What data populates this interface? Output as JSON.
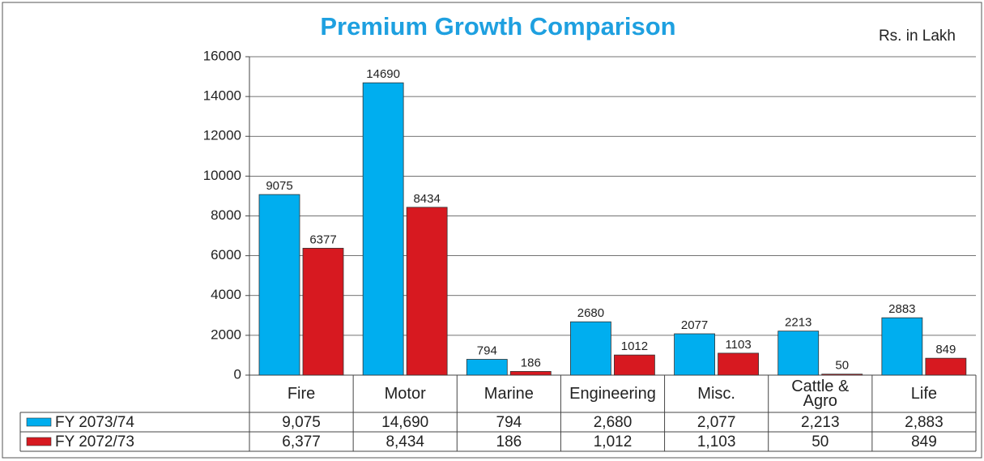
{
  "chart_data": {
    "type": "bar",
    "title": "Premium Growth Comparison",
    "subtitle": "Rs. in Lakh",
    "categories": [
      "Fire",
      "Motor",
      "Marine",
      "Engineering",
      "Misc.",
      "Cattle & Agro",
      "Life"
    ],
    "series": [
      {
        "name": "FY 2073/74",
        "color": "#00aeef",
        "values": [
          9075,
          14690,
          794,
          2680,
          2077,
          2213,
          2883
        ],
        "value_labels": [
          "9,075",
          "14,690",
          "794",
          "2,680",
          "2,077",
          "2,213",
          "2,883"
        ]
      },
      {
        "name": "FY 2072/73",
        "color": "#d71920",
        "values": [
          6377,
          8434,
          186,
          1012,
          1103,
          50,
          849
        ],
        "value_labels": [
          "6,377",
          "8,434",
          "186",
          "1,012",
          "1,103",
          "50",
          "849"
        ]
      }
    ],
    "ylim": [
      0,
      16000
    ],
    "yticks": [
      0,
      2000,
      4000,
      6000,
      8000,
      10000,
      12000,
      14000,
      16000
    ],
    "grid": true
  }
}
